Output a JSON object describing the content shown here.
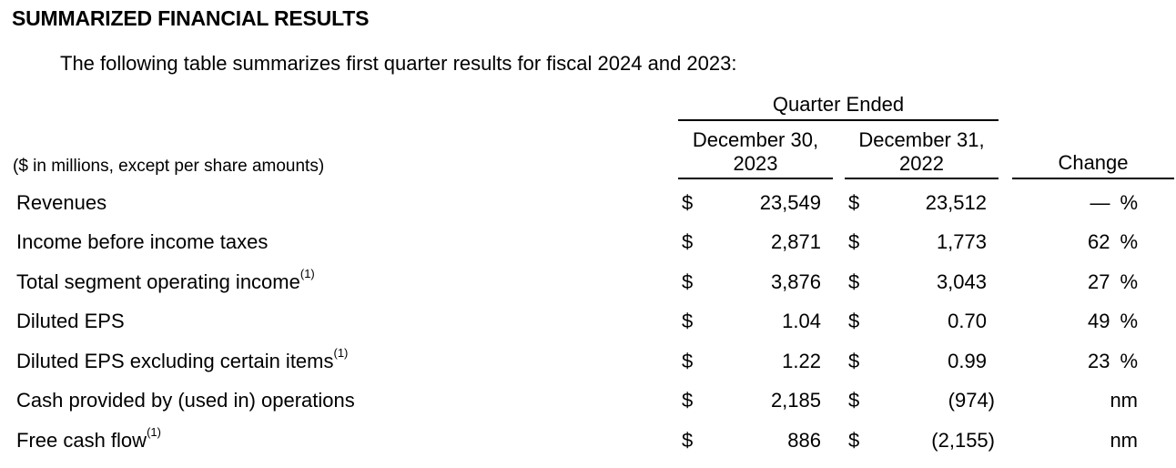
{
  "title": "SUMMARIZED FINANCIAL RESULTS",
  "intro": "The following table summarizes first quarter results for fiscal 2024 and 2023:",
  "table": {
    "group_header": "Quarter Ended",
    "note": "($ in millions, except per share amounts)",
    "currency_symbol": "$",
    "columns": {
      "col1_line1": "December 30,",
      "col1_line2": "2023",
      "col2_line1": "December 31,",
      "col2_line2": "2022",
      "change": "Change"
    },
    "rows": [
      {
        "label": "Revenues",
        "sup": "",
        "v2023": "23,549",
        "v2022": "23,512",
        "change": "—",
        "change_unit": "%"
      },
      {
        "label": "Income before income taxes",
        "sup": "",
        "v2023": "2,871",
        "v2022": "1,773",
        "change": "62",
        "change_unit": "%"
      },
      {
        "label": "Total segment operating income",
        "sup": "(1)",
        "v2023": "3,876",
        "v2022": "3,043",
        "change": "27",
        "change_unit": "%"
      },
      {
        "label": "Diluted EPS",
        "sup": "",
        "v2023": "1.04",
        "v2022": "0.70",
        "change": "49",
        "change_unit": "%"
      },
      {
        "label": "Diluted EPS excluding certain items",
        "sup": "(1)",
        "v2023": "1.22",
        "v2022": "0.99",
        "change": "23",
        "change_unit": "%"
      },
      {
        "label": "Cash provided by (used in) operations",
        "sup": "",
        "v2023": "2,185",
        "v2022": "(974)",
        "change": "nm",
        "change_unit": ""
      },
      {
        "label": "Free cash flow",
        "sup": "(1)",
        "v2023": "886",
        "v2022": "(2,155)",
        "change": "nm",
        "change_unit": ""
      }
    ]
  }
}
